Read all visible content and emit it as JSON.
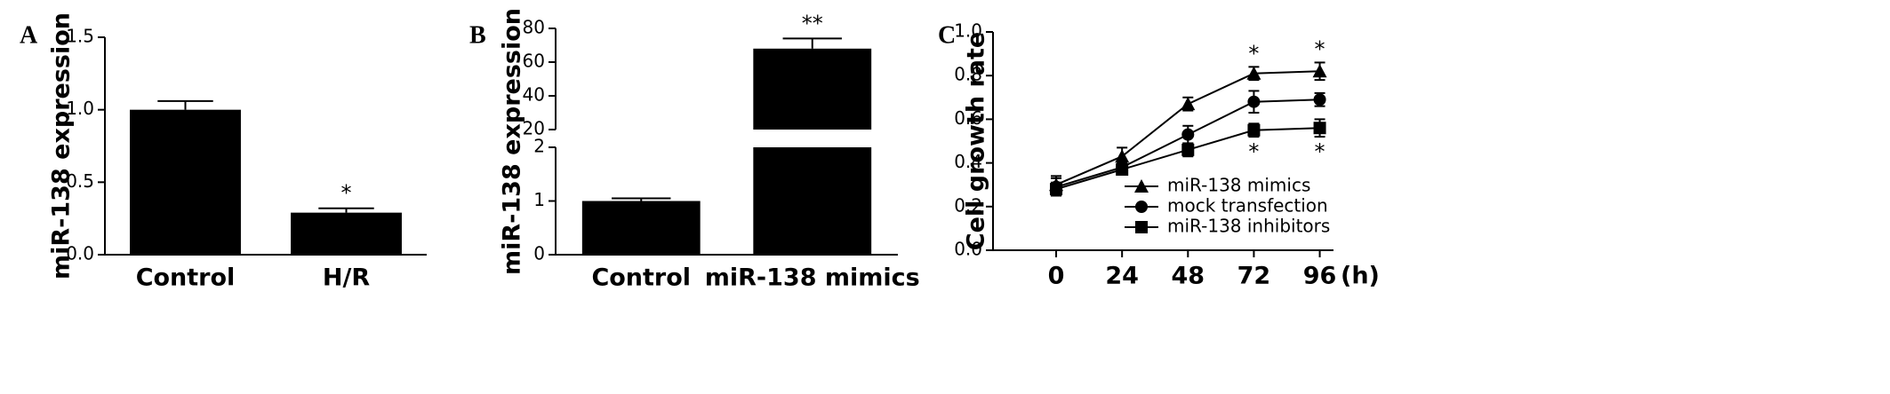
{
  "chart_data": [
    {
      "type": "bar",
      "panel": "A",
      "ylabel": "miR-138 expression",
      "categories": [
        "Control",
        "H/R"
      ],
      "values": [
        1.0,
        0.29
      ],
      "errors": [
        0.06,
        0.03
      ],
      "color": "#000000",
      "ylim": [
        0,
        1.5
      ],
      "yticks": [
        {
          "value": 0,
          "label": "0.0"
        },
        0.5,
        {
          "value": 1,
          "label": "1.0"
        },
        1.5
      ],
      "annotations": [
        {
          "text": "*",
          "category": "H/R"
        }
      ]
    },
    {
      "type": "bar",
      "panel": "B",
      "ylabel": "miR-138 expression",
      "categories": [
        "Control",
        "miR-138 mimics"
      ],
      "values": [
        1.0,
        68
      ],
      "errors": [
        0.05,
        6
      ],
      "color": "#000000",
      "ylim": [
        0,
        80
      ],
      "axis_break": [
        2,
        20
      ],
      "yticks": [
        0,
        1,
        2,
        20,
        40,
        60,
        80
      ],
      "annotations": [
        {
          "text": "**",
          "category": "miR-138 mimics"
        }
      ]
    },
    {
      "type": "line",
      "panel": "C",
      "ylabel": "Cell growth rate",
      "xlabel": "(h)",
      "x": [
        0,
        24,
        48,
        72,
        96
      ],
      "xlim": [
        -23,
        101
      ],
      "xticks": [
        0,
        24,
        48,
        72,
        96
      ],
      "ylim": [
        0,
        1
      ],
      "yticks": [
        {
          "value": 0,
          "label": "0.0"
        },
        0.2,
        0.4,
        0.6,
        0.8,
        {
          "value": 1,
          "label": "1.0"
        }
      ],
      "series": [
        {
          "name": "miR-138 mimics",
          "color": "#000000",
          "marker": "triangle",
          "values": [
            0.3,
            0.43,
            0.67,
            0.81,
            0.82
          ],
          "errors": [
            0.04,
            0.04,
            0.03,
            0.03,
            0.04
          ]
        },
        {
          "name": "mock transfection",
          "color": "#000000",
          "marker": "circle",
          "values": [
            0.29,
            0.38,
            0.53,
            0.68,
            0.69
          ],
          "errors": [
            0.04,
            0.02,
            0.04,
            0.05,
            0.03
          ]
        },
        {
          "name": "miR-138 inhibitors",
          "color": "#000000",
          "marker": "square",
          "values": [
            0.28,
            0.37,
            0.46,
            0.55,
            0.56
          ],
          "errors": [
            0.03,
            0.02,
            0.03,
            0.03,
            0.04
          ]
        }
      ],
      "annotations": [
        {
          "text": "*",
          "x": 72,
          "series": "miR-138 mimics",
          "position": "above"
        },
        {
          "text": "*",
          "x": 96,
          "series": "miR-138 mimics",
          "position": "above"
        },
        {
          "text": "*",
          "x": 72,
          "series": "miR-138 inhibitors",
          "position": "below"
        },
        {
          "text": "*",
          "x": 96,
          "series": "miR-138 inhibitors",
          "position": "below"
        }
      ]
    }
  ]
}
